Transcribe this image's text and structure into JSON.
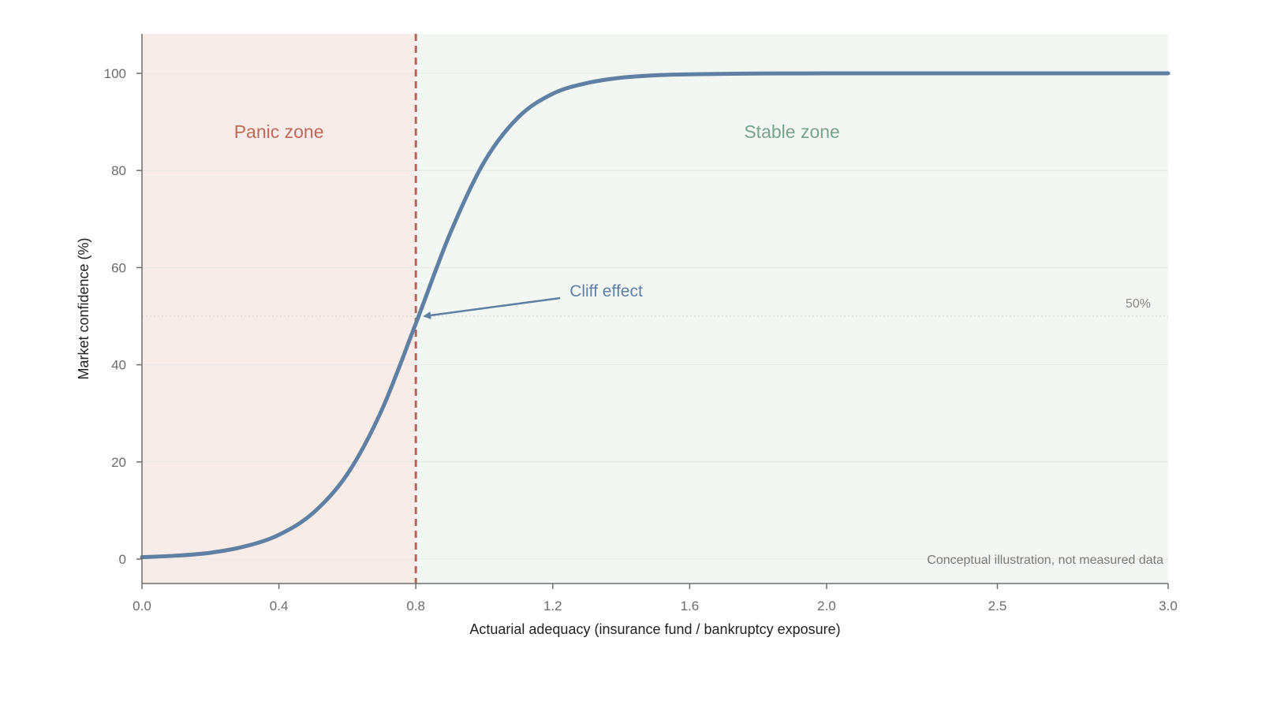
{
  "chart_data": {
    "type": "line",
    "xlabel": "Actuarial adequacy (insurance fund / bankruptcy exposure)",
    "ylabel": "Market confidence (%)",
    "xlim": [
      0,
      3.0
    ],
    "ylim": [
      -5,
      108
    ],
    "x_ticks": [
      {
        "value": 0.0,
        "label": "0.0"
      },
      {
        "value": 0.4,
        "label": "0.4"
      },
      {
        "value": 0.8,
        "label": "0.8"
      },
      {
        "value": 1.2,
        "label": "1.2"
      },
      {
        "value": 1.6,
        "label": "1.6"
      },
      {
        "value": 2.0,
        "label": "2.0"
      },
      {
        "value": 2.5,
        "label": "2.5"
      },
      {
        "value": 3.0,
        "label": "3.0"
      }
    ],
    "y_ticks": [
      {
        "value": 0,
        "label": "0"
      },
      {
        "value": 20,
        "label": "20"
      },
      {
        "value": 40,
        "label": "40"
      },
      {
        "value": 60,
        "label": "60"
      },
      {
        "value": 80,
        "label": "80"
      },
      {
        "value": 100,
        "label": "100"
      }
    ],
    "grid": "horizontal",
    "series": [
      {
        "color": "#5f7fa3",
        "x": [
          0.0,
          0.1,
          0.2,
          0.3,
          0.4,
          0.5,
          0.6,
          0.7,
          0.8,
          0.9,
          1.0,
          1.1,
          1.2,
          1.3,
          1.4,
          1.5,
          1.6,
          1.8,
          2.0,
          2.5,
          3.0
        ],
        "y": [
          0.4,
          0.7,
          1.3,
          2.6,
          5.0,
          9.5,
          17.5,
          30.6,
          48.5,
          67.0,
          81.8,
          91.0,
          95.8,
          98.0,
          99.1,
          99.6,
          99.8,
          99.95,
          99.99,
          100,
          100
        ]
      }
    ],
    "regions": [
      {
        "label": "Panic zone",
        "x_from": 0.0,
        "x_to": 0.8,
        "fill": "#f8ece8",
        "text_color": "#c0695a"
      },
      {
        "label": "Stable zone",
        "x_from": 0.8,
        "x_to": 3.0,
        "fill": "#f2f7f3",
        "text_color": "#7aa38c"
      }
    ],
    "threshold": {
      "x": 0.8,
      "color": "#b5655a",
      "style": "dashed"
    },
    "reference_line": {
      "y": 50,
      "label": "50%"
    },
    "annotations": [
      {
        "text": "Cliff effect",
        "point_x": 0.8,
        "point_y": 50,
        "color": "#5f7fa3"
      }
    ],
    "note": "Conceptual illustration, not measured data"
  }
}
